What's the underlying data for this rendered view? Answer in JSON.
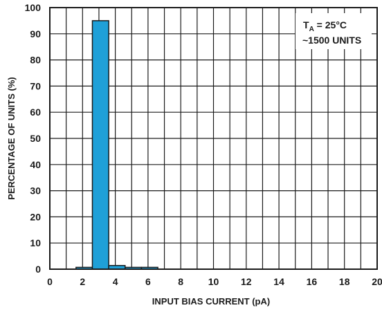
{
  "chart_data": {
    "type": "bar",
    "xlabel": "INPUT BIAS CURRENT (pA)",
    "ylabel": "PERCENTAGE OF UNITS (%)",
    "xlim": [
      0,
      20
    ],
    "ylim": [
      0,
      100
    ],
    "x_ticks": [
      0,
      2,
      4,
      6,
      8,
      10,
      12,
      14,
      16,
      18,
      20
    ],
    "y_ticks": [
      0,
      10,
      20,
      30,
      40,
      50,
      60,
      70,
      80,
      90,
      100
    ],
    "grid": true,
    "bar_color": "#1fa0d8",
    "bars": [
      {
        "x_start": 1.6,
        "x_end": 2.6,
        "value": 0.7
      },
      {
        "x_start": 2.6,
        "x_end": 3.6,
        "value": 95
      },
      {
        "x_start": 3.6,
        "x_end": 4.6,
        "value": 1.4
      },
      {
        "x_start": 4.6,
        "x_end": 5.6,
        "value": 0.7
      },
      {
        "x_start": 5.6,
        "x_end": 6.6,
        "value": 0.7
      }
    ],
    "annotation": {
      "temp_prefix": "T",
      "temp_subscript": "A",
      "temp_suffix": " = 25°C",
      "units": "~1500 UNITS"
    }
  }
}
